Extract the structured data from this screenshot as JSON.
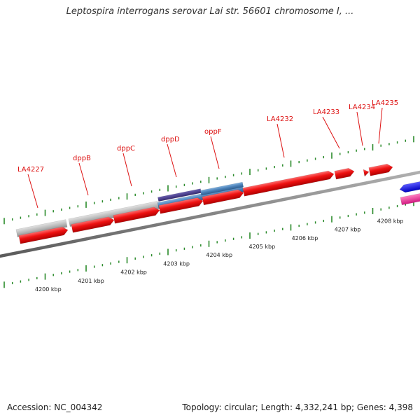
{
  "title": "Leptospira interrogans serovar Lai str. 56601 chromosome I, ...",
  "footer": {
    "accession": "Accession: NC_004342",
    "summary": "Topology: circular; Length: 4,332,241 bp; Genes: 4,398"
  },
  "colors": {
    "gene_forward": "#ee1111",
    "gene_gray": "#b8b8b8",
    "gene_blue": "#4a80b8",
    "gene_navy": "#4a3f8f",
    "gene_reverse_blue": "#1a1aee",
    "gene_reverse_pink": "#ee3399",
    "backbone": "#8a8a8a",
    "tick": "#2a8a2a",
    "label": "#dd1111",
    "kbp_label": "#222222"
  },
  "gene_labels": [
    {
      "id": "LA4227",
      "text": "LA4227"
    },
    {
      "id": "dppB",
      "text": "dppB"
    },
    {
      "id": "dppC",
      "text": "dppC"
    },
    {
      "id": "dppD",
      "text": "dppD"
    },
    {
      "id": "oppF",
      "text": "oppF"
    },
    {
      "id": "LA4232",
      "text": "LA4232"
    },
    {
      "id": "LA4233",
      "text": "LA4233"
    },
    {
      "id": "LA4234",
      "text": "LA4234"
    },
    {
      "id": "LA4235",
      "text": "LA4235"
    }
  ],
  "kbp_labels": [
    "4200 kbp",
    "4201 kbp",
    "4202 kbp",
    "4203 kbp",
    "4204 kbp",
    "4205 kbp",
    "4206 kbp",
    "4207 kbp",
    "4208 kbp"
  ]
}
